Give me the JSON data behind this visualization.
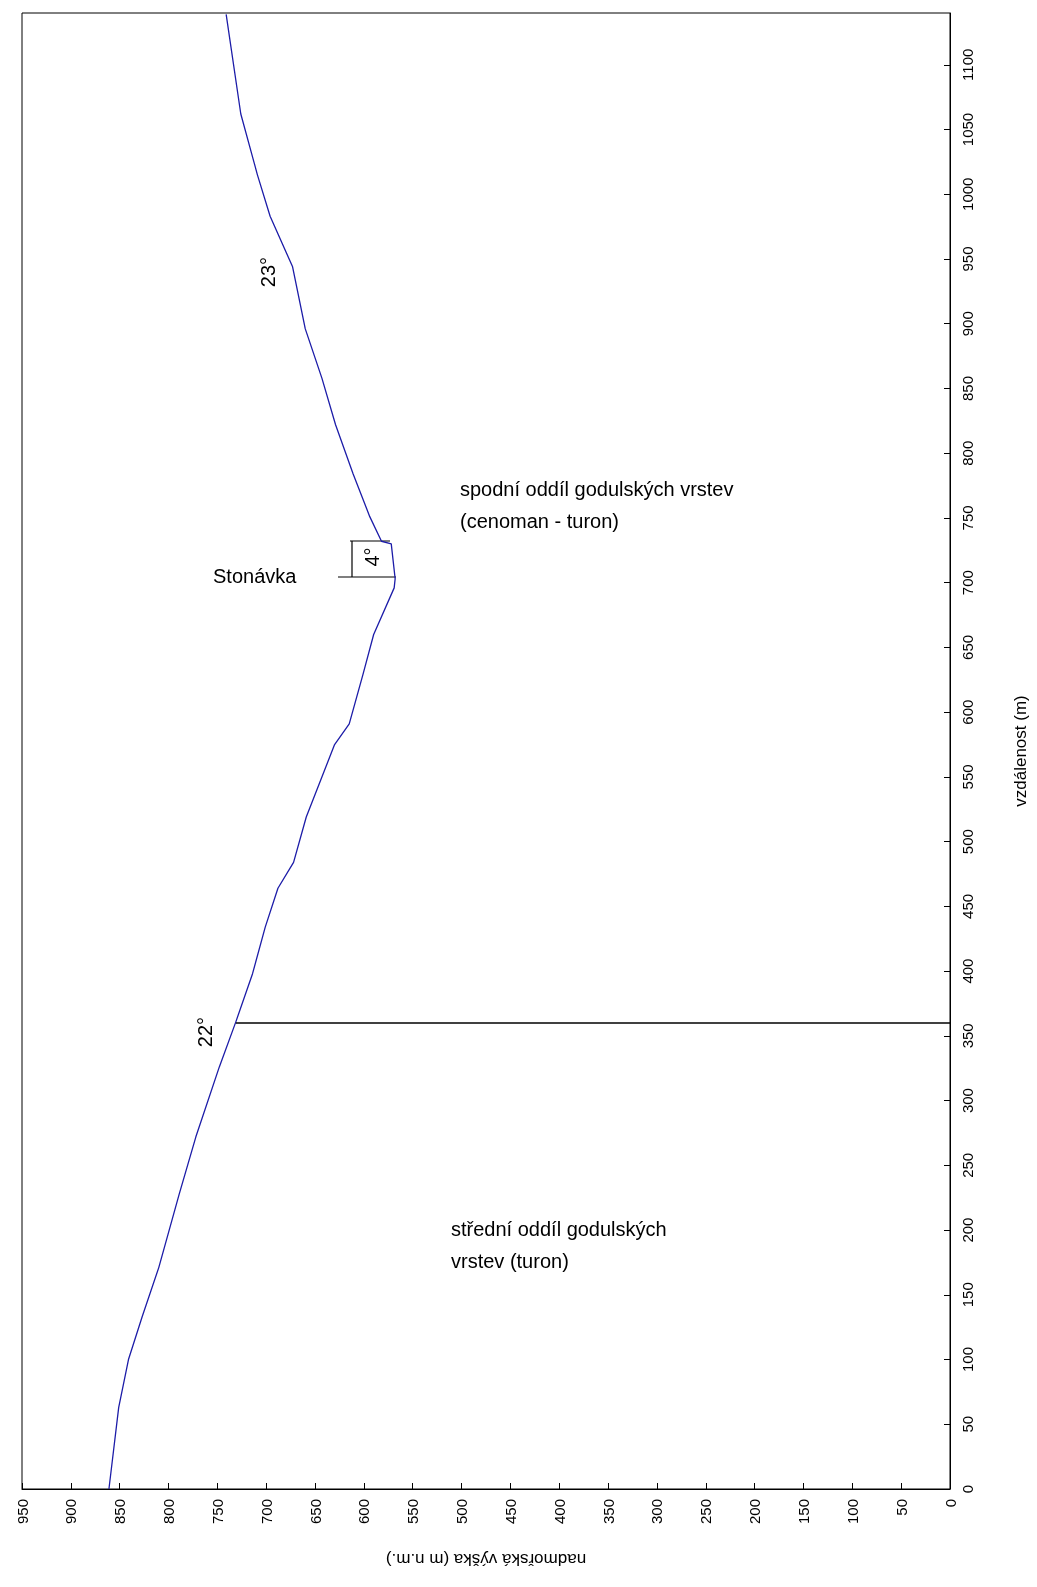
{
  "chart_data": {
    "type": "line",
    "xlabel": "nadmořská výška (m n.m.)",
    "ylabel": "vzdálenost (m)",
    "xlim": [
      950,
      0
    ],
    "ylim": [
      0,
      1140
    ],
    "xticks": [
      0,
      50,
      100,
      150,
      200,
      250,
      300,
      350,
      400,
      450,
      500,
      550,
      600,
      650,
      700,
      750,
      800,
      850,
      900,
      950
    ],
    "yticks": [
      0,
      50,
      100,
      150,
      200,
      250,
      300,
      350,
      400,
      450,
      500,
      550,
      600,
      650,
      700,
      750,
      800,
      850,
      900,
      950,
      1000,
      1050,
      1100
    ],
    "grid": false,
    "marker": "none",
    "series": [
      {
        "color": "#1c1ca8",
        "x": [
          861,
          851,
          841,
          827,
          810,
          789,
          772,
          748,
          731,
          714,
          701,
          688,
          672,
          659,
          630,
          615,
          601,
          590,
          569,
          568,
          572,
          582,
          594,
          611,
          629,
          643,
          660,
          673,
          696,
          709,
          726,
          741
        ],
        "values": [
          0,
          63,
          100,
          133,
          171,
          228,
          272,
          326,
          361,
          398,
          434,
          464,
          484,
          519,
          575,
          591,
          629,
          660,
          696,
          703,
          730,
          732,
          751,
          784,
          822,
          858,
          896,
          944,
          983,
          1015,
          1062,
          1139
        ]
      },
      {
        "color": "#000000",
        "x": [
          0,
          731
        ],
        "values": [
          360,
          360
        ]
      }
    ],
    "annotations": [
      "23°",
      "22°",
      "4°",
      "Stonávka",
      "spodní oddíl godulských vrstev\n(cenoman - turon)",
      "střední oddíl godulských\nvrstev (turon)"
    ]
  }
}
